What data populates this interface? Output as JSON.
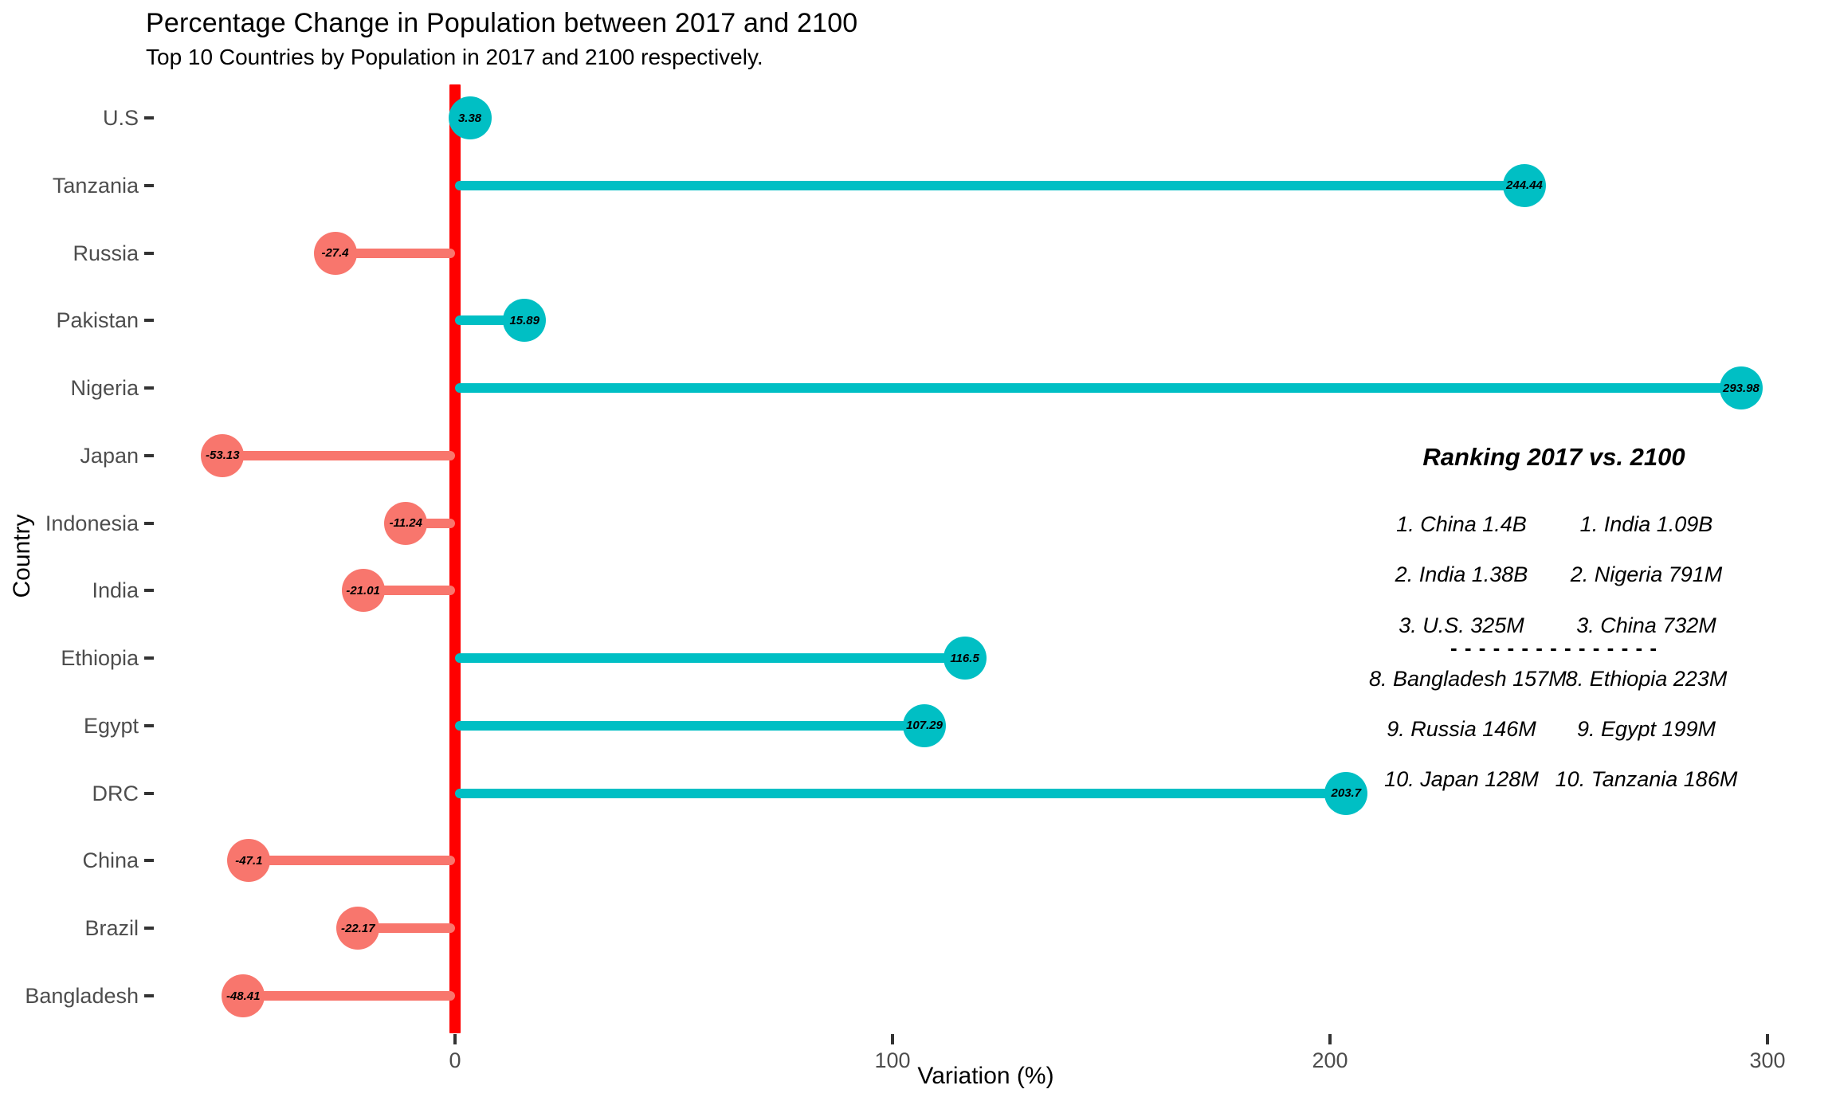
{
  "figure": {
    "title": "Percentage Change in Population between 2017 and 2100",
    "subtitle": "Top 10 Countries by Population in 2017 and 2100 respectively.",
    "xlabel": "Variation (%)",
    "ylabel": "Country"
  },
  "colors": {
    "positive": "#00BFC4",
    "negative": "#F8766D",
    "zero_line": "#FF0000",
    "axis_text": "#4D4D4D",
    "tick_mark": "#333333"
  },
  "chart_data": {
    "type": "bar",
    "variant": "lollipop",
    "orientation": "horizontal",
    "title": "Percentage Change in Population between 2017 and 2100",
    "subtitle": "Top 10 Countries by Population in 2017 and 2100 respectively.",
    "xlabel": "Variation (%)",
    "ylabel": "Country",
    "xlim": [
      -68,
      312
    ],
    "xticks": [
      0,
      100,
      200,
      300
    ],
    "zero_line": 0,
    "grid": false,
    "categories": [
      "U.S",
      "Tanzania",
      "Russia",
      "Pakistan",
      "Nigeria",
      "Japan",
      "Indonesia",
      "India",
      "Ethiopia",
      "Egypt",
      "DRC",
      "China",
      "Brazil",
      "Bangladesh"
    ],
    "values": [
      3.38,
      244.44,
      -27.4,
      15.89,
      293.98,
      -53.13,
      -11.24,
      -21.01,
      116.5,
      107.29,
      203.7,
      -47.1,
      -22.17,
      -48.41
    ],
    "value_labels": [
      "3.38",
      "244.44",
      "-27.4",
      "15.89",
      "293.98",
      "-53.13",
      "-11.24",
      "-21.01",
      "116.5",
      "107.29",
      "203.7",
      "-47.1",
      "-22.17",
      "-48.41"
    ],
    "color_rule": "positive values teal, negative values salmon"
  },
  "annotation": {
    "title": "Ranking 2017 vs. 2100",
    "divider": "- - - - - - - - - - - - - - -",
    "rows": [
      {
        "left": "1. China 1.4B",
        "right": "1. India 1.09B"
      },
      {
        "left": "2. India 1.38B",
        "right": "2. Nigeria 791M"
      },
      {
        "left": "3. U.S. 325M",
        "right": "3. China 732M"
      },
      {
        "left": "8. Bangladesh 157M",
        "right": "8. Ethiopia 223M"
      },
      {
        "left": "9. Russia 146M",
        "right": "9. Egypt 199M"
      },
      {
        "left": "10. Japan 128M",
        "right": "10. Tanzania 186M"
      }
    ]
  }
}
